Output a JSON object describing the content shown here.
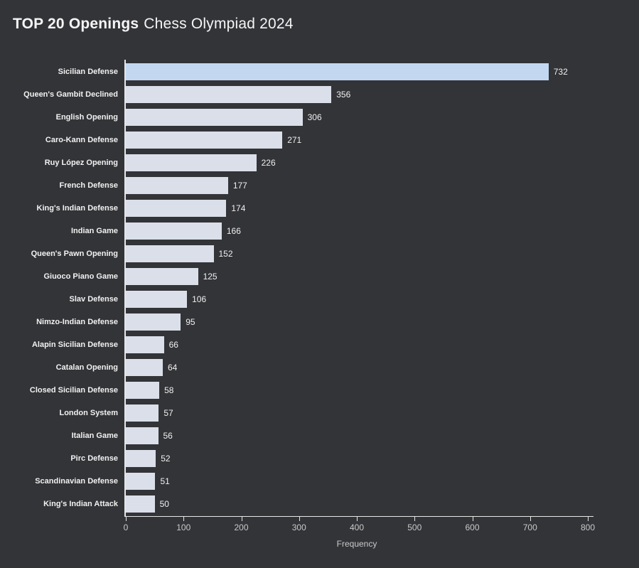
{
  "title": {
    "bold": "TOP 20 Openings",
    "regular": "Chess Olympiad 2024"
  },
  "chart_data": {
    "type": "bar",
    "orientation": "horizontal",
    "title": "TOP 20 Openings Chess Olympiad 2024",
    "categories": [
      "Sicilian Defense",
      "Queen's Gambit Declined",
      "English Opening",
      "Caro-Kann Defense",
      "Ruy López Opening",
      "French Defense",
      "King's Indian Defense",
      "Indian Game",
      "Queen's Pawn Opening",
      "Giuoco Piano Game",
      "Slav Defense",
      "Nimzo-Indian Defense",
      "Alapin Sicilian Defense",
      "Catalan Opening",
      "Closed Sicilian Defense",
      "London System",
      "Italian Game",
      "Pirc Defense",
      "Scandinavian Defense",
      "King's Indian Attack"
    ],
    "values": [
      732,
      356,
      306,
      271,
      226,
      177,
      174,
      166,
      152,
      125,
      106,
      95,
      66,
      64,
      58,
      57,
      56,
      52,
      51,
      50
    ],
    "highlight_index": 0,
    "highlight_color": "#c3d7f1",
    "bar_color": "#dadfe9",
    "xlabel": "Frequency",
    "x_ticks": [
      0,
      100,
      200,
      300,
      400,
      500,
      600,
      700,
      800
    ],
    "xlim": [
      0,
      800
    ],
    "grid": false,
    "legend": "none",
    "background": "#333438",
    "axis_color": "#e6e6e6",
    "label_color": "#f2f2f2",
    "tick_label_color": "#c9c9c9"
  }
}
